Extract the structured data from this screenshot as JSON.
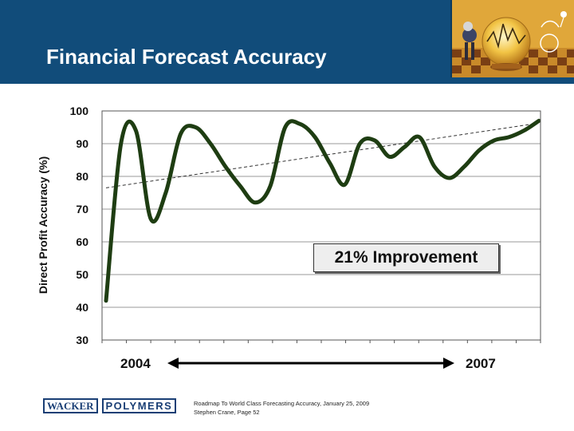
{
  "header": {
    "title": "Financial Forecast Accuracy",
    "background_color": "#114c7a"
  },
  "chart_data": {
    "type": "line",
    "title": "",
    "ylabel": "Direct Profit Accuracy (%)",
    "xlabel": "",
    "ylim": [
      30,
      100
    ],
    "yticks": [
      100,
      90,
      80,
      70,
      60,
      50,
      40,
      30
    ],
    "grid": true,
    "x_ticks_count": 18,
    "series": [
      {
        "values": [
          42,
          90,
          94,
          67,
          75,
          93,
          95,
          90,
          83,
          77,
          72,
          77,
          95,
          96,
          92,
          84,
          77.5,
          90,
          91,
          86,
          89,
          92,
          83,
          79.5,
          83,
          88,
          91,
          92,
          94,
          97
        ],
        "color": "#1e3d12"
      }
    ],
    "trend_line": {
      "start": 76.5,
      "end": 96,
      "style": "dashed",
      "color": "#333333"
    },
    "annotation": "21% Improvement",
    "start_label": "2004",
    "end_label": "2007"
  },
  "footer": {
    "logo_left": "WACKER",
    "logo_right": "POLYMERS",
    "note_line1": "Roadmap To World Class Forecasting Accuracy, January 25, 2009",
    "note_line2": "Stephen Crane, Page 52"
  }
}
